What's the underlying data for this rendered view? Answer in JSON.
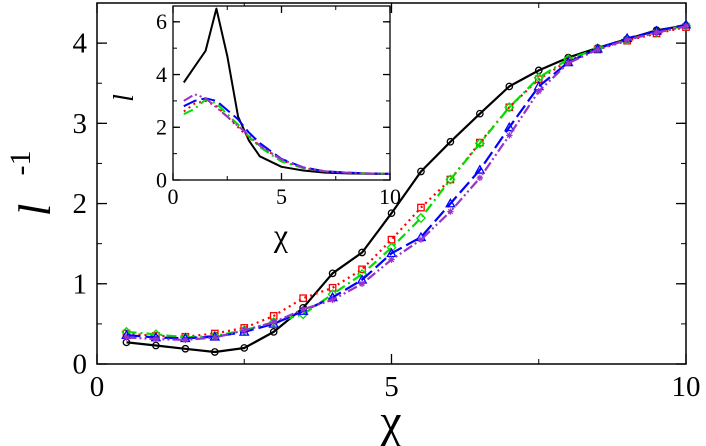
{
  "chart_data": [
    {
      "type": "line",
      "xlabel": "χ",
      "ylabel": "l",
      "ylabel_superscript": "-1",
      "xlim": [
        0,
        10
      ],
      "ylim": [
        0,
        4.5
      ],
      "xticks": [
        "0",
        "5",
        "10"
      ],
      "yticks": [
        "0",
        "1",
        "2",
        "3",
        "4"
      ],
      "grid": false,
      "series": [
        {
          "color": "#000000",
          "line": "solid",
          "marker": "circle",
          "x": [
            0.5,
            1,
            1.5,
            2,
            2.5,
            3,
            3.5,
            4,
            4.5,
            5,
            5.5,
            6,
            6.5,
            7,
            7.5,
            8,
            8.5,
            9,
            9.5,
            10
          ],
          "values": [
            0.27,
            0.23,
            0.19,
            0.15,
            0.2,
            0.4,
            0.7,
            1.13,
            1.39,
            1.88,
            2.4,
            2.77,
            3.12,
            3.46,
            3.66,
            3.82,
            3.94,
            4.05,
            4.16,
            4.22
          ]
        },
        {
          "color": "#ff0000",
          "line": "dotted",
          "marker": "square",
          "x": [
            0.5,
            1,
            1.5,
            2,
            2.5,
            3,
            3.5,
            4,
            4.5,
            5,
            5.5,
            6,
            6.5,
            7,
            7.5,
            8,
            8.5,
            9,
            9.5,
            10
          ],
          "values": [
            0.38,
            0.35,
            0.34,
            0.38,
            0.45,
            0.6,
            0.82,
            0.95,
            1.18,
            1.55,
            1.95,
            2.3,
            2.76,
            3.2,
            3.55,
            3.78,
            3.92,
            4.03,
            4.12,
            4.2
          ]
        },
        {
          "color": "#00dd00",
          "line": "dashdot",
          "marker": "diamond",
          "x": [
            0.5,
            1,
            1.5,
            2,
            2.5,
            3,
            3.5,
            4,
            4.5,
            5,
            5.5,
            6,
            6.5,
            7,
            7.5,
            8,
            8.5,
            9,
            9.5,
            10
          ],
          "values": [
            0.4,
            0.37,
            0.33,
            0.35,
            0.42,
            0.52,
            0.62,
            0.87,
            1.12,
            1.45,
            1.82,
            2.3,
            2.75,
            3.2,
            3.57,
            3.8,
            3.93,
            4.04,
            4.14,
            4.22
          ]
        },
        {
          "color": "#0000ff",
          "line": "longdash",
          "marker": "triangle",
          "x": [
            0.5,
            1,
            1.5,
            2,
            2.5,
            3,
            3.5,
            4,
            4.5,
            5,
            5.5,
            6,
            6.5,
            7,
            7.5,
            8,
            8.5,
            9,
            9.5,
            10
          ],
          "values": [
            0.36,
            0.33,
            0.32,
            0.34,
            0.4,
            0.5,
            0.66,
            0.83,
            1.05,
            1.38,
            1.58,
            2.0,
            2.42,
            2.95,
            3.46,
            3.76,
            3.93,
            4.06,
            4.15,
            4.23
          ]
        },
        {
          "color": "#9933cc",
          "line": "dashdotdot",
          "marker": "star",
          "x": [
            0.5,
            1,
            1.5,
            2,
            2.5,
            3,
            3.5,
            4,
            4.5,
            5,
            5.5,
            6,
            6.5,
            7,
            7.5,
            8,
            8.5,
            9,
            9.5,
            10
          ],
          "values": [
            0.33,
            0.31,
            0.3,
            0.33,
            0.42,
            0.52,
            0.68,
            0.8,
            1.0,
            1.3,
            1.55,
            1.9,
            2.32,
            2.85,
            3.4,
            3.75,
            3.92,
            4.04,
            4.13,
            4.21
          ]
        }
      ]
    },
    {
      "type": "line",
      "xlabel": "χ",
      "ylabel": "l",
      "xlim": [
        0,
        10
      ],
      "ylim": [
        0,
        6.6
      ],
      "xticks": [
        "0",
        "5",
        "10"
      ],
      "yticks": [
        "0",
        "2",
        "4",
        "6"
      ],
      "grid": false,
      "series": [
        {
          "color": "#000000",
          "line": "solid",
          "x": [
            0.5,
            1,
            1.5,
            2,
            2.5,
            3,
            3.5,
            4,
            5,
            6,
            7,
            8,
            9,
            10
          ],
          "values": [
            3.7,
            4.3,
            4.9,
            6.5,
            4.7,
            2.4,
            1.5,
            0.9,
            0.5,
            0.36,
            0.28,
            0.25,
            0.24,
            0.23
          ]
        },
        {
          "color": "#ff0000",
          "line": "dotted",
          "x": [
            0.5,
            1,
            1.5,
            2,
            2.5,
            3,
            3.5,
            4,
            5,
            6,
            7,
            8,
            9,
            10
          ],
          "values": [
            2.6,
            2.9,
            3.0,
            2.8,
            2.4,
            2.0,
            1.6,
            1.3,
            0.75,
            0.45,
            0.32,
            0.27,
            0.25,
            0.24
          ]
        },
        {
          "color": "#00dd00",
          "line": "dashdot",
          "x": [
            0.5,
            1,
            1.5,
            2,
            2.5,
            3,
            3.5,
            4,
            5,
            6,
            7,
            8,
            9,
            10
          ],
          "values": [
            2.5,
            2.7,
            3.05,
            2.9,
            2.5,
            2.1,
            1.65,
            1.25,
            0.7,
            0.45,
            0.33,
            0.28,
            0.25,
            0.24
          ]
        },
        {
          "color": "#0000ff",
          "line": "longdash",
          "x": [
            0.5,
            1,
            1.5,
            2,
            2.5,
            3,
            3.5,
            4,
            5,
            6,
            7,
            8,
            9,
            10
          ],
          "values": [
            2.8,
            3.0,
            3.1,
            3.0,
            2.65,
            2.3,
            1.8,
            1.4,
            0.8,
            0.48,
            0.33,
            0.28,
            0.25,
            0.24
          ]
        },
        {
          "color": "#9933cc",
          "line": "dashdotdot",
          "x": [
            0.5,
            1,
            1.5,
            2,
            2.5,
            3,
            3.5,
            4,
            5,
            6,
            7,
            8,
            9,
            10
          ],
          "values": [
            3.0,
            3.25,
            3.1,
            2.75,
            2.4,
            2.05,
            1.7,
            1.3,
            0.78,
            0.47,
            0.33,
            0.28,
            0.25,
            0.24
          ]
        }
      ]
    }
  ]
}
